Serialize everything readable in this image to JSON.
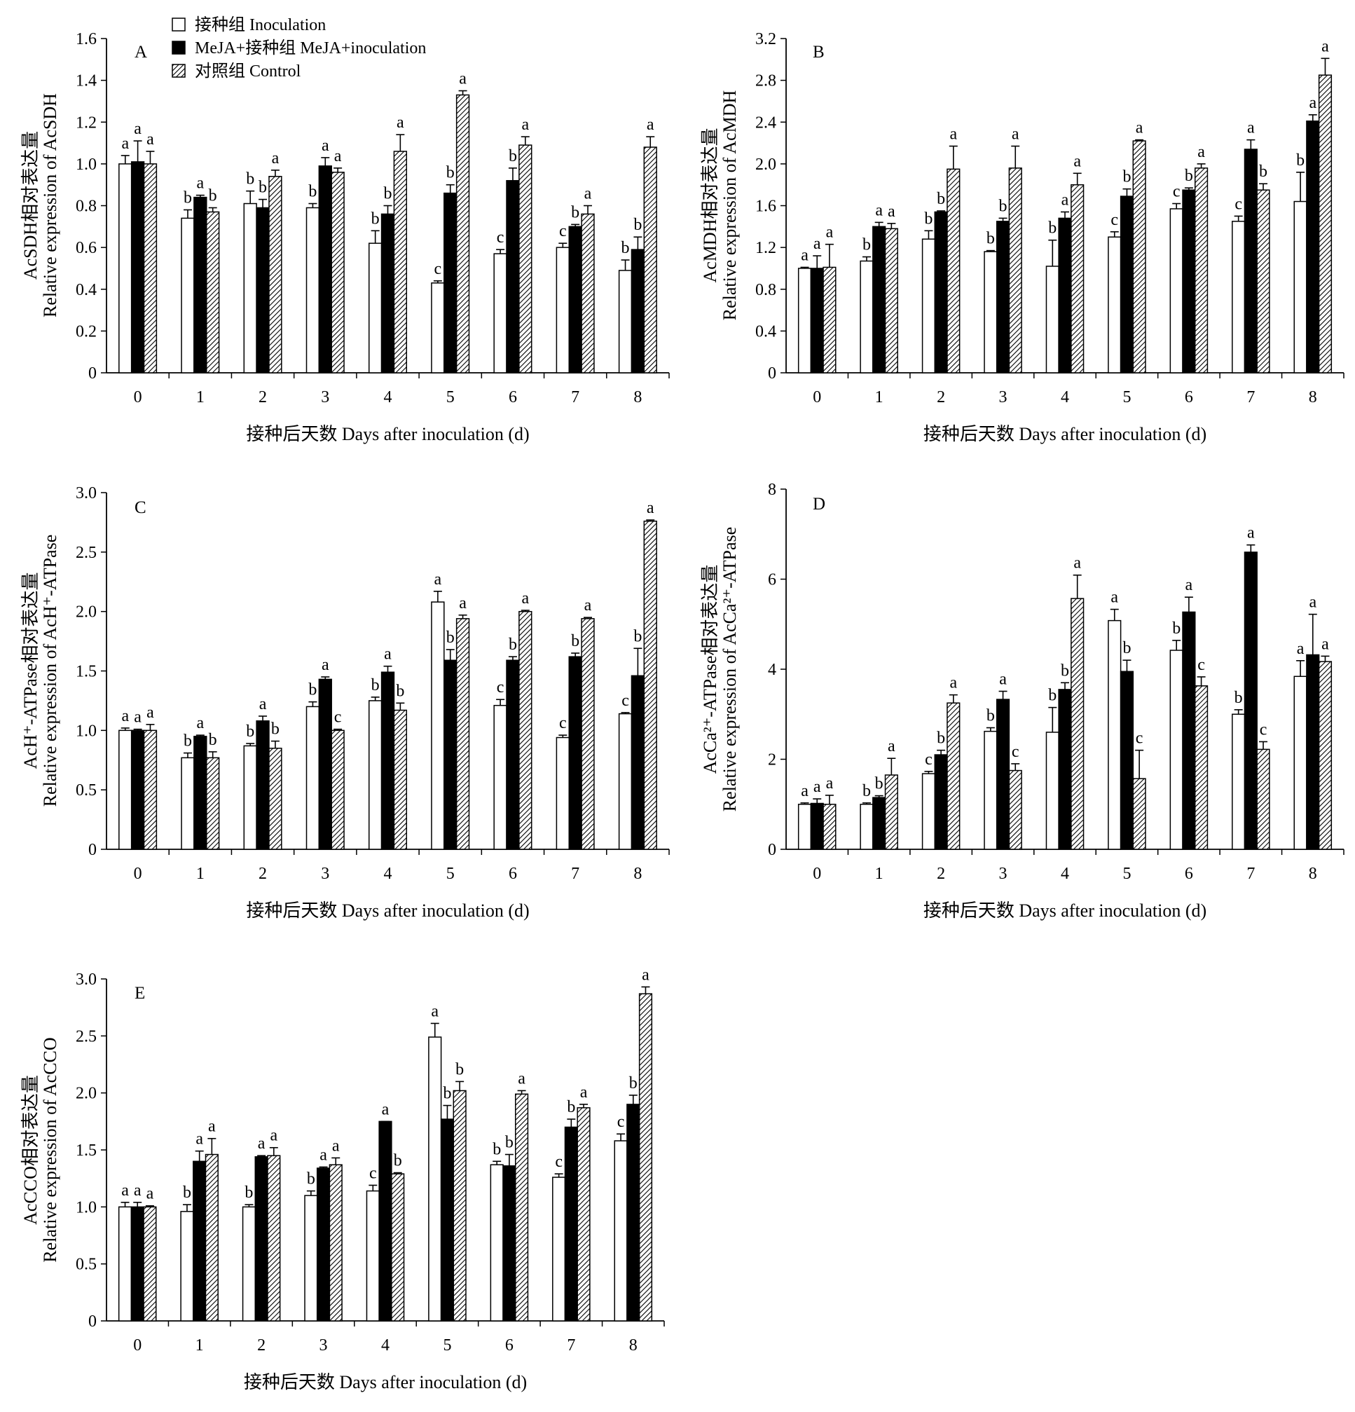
{
  "legend": [
    {
      "label": "接种组 Inoculation",
      "fill": "#ffffff"
    },
    {
      "label": "MeJA+接种组 MeJA+inoculation",
      "fill": "#000000"
    },
    {
      "label": "对照组 Control",
      "fill": "hatch"
    }
  ],
  "chart_data": [
    {
      "type": "bar",
      "panel": "A",
      "categories": [
        "0",
        "1",
        "2",
        "3",
        "4",
        "5",
        "6",
        "7",
        "8"
      ],
      "xlabel": "接种后天数 Days after inoculation (d)",
      "ylabel_line1": "AcSDH相对表达量",
      "ylabel_line2": "Relative expression of AcSDH",
      "ylim": [
        0,
        1.6
      ],
      "yticks": [
        "0",
        "0.2",
        "0.4",
        "0.6",
        "0.8",
        "1.0",
        "1.2",
        "1.4",
        "1.6"
      ],
      "series": [
        {
          "name": "接种组 Inoculation",
          "values": [
            1.0,
            0.74,
            0.81,
            0.79,
            0.62,
            0.43,
            0.57,
            0.6,
            0.49
          ],
          "errors": [
            0.04,
            0.04,
            0.06,
            0.02,
            0.06,
            0.01,
            0.02,
            0.02,
            0.05
          ],
          "letters": [
            "a",
            "b",
            "b",
            "b",
            "b",
            "c",
            "c",
            "c",
            "b"
          ]
        },
        {
          "name": "MeJA+接种组 MeJA+inoculation",
          "values": [
            1.01,
            0.84,
            0.79,
            0.99,
            0.76,
            0.86,
            0.92,
            0.7,
            0.59
          ],
          "errors": [
            0.1,
            0.01,
            0.04,
            0.04,
            0.04,
            0.04,
            0.06,
            0.01,
            0.06
          ],
          "letters": [
            "a",
            "a",
            "b",
            "a",
            "b",
            "b",
            "b",
            "b",
            "b"
          ]
        },
        {
          "name": "对照组 Control",
          "values": [
            1.0,
            0.77,
            0.94,
            0.96,
            1.06,
            1.33,
            1.09,
            0.76,
            1.08
          ],
          "errors": [
            0.06,
            0.02,
            0.03,
            0.02,
            0.08,
            0.02,
            0.04,
            0.04,
            0.05
          ],
          "letters": [
            "a",
            "b",
            "a",
            "a",
            "a",
            "a",
            "a",
            "a",
            "a"
          ]
        }
      ]
    },
    {
      "type": "bar",
      "panel": "B",
      "categories": [
        "0",
        "1",
        "2",
        "3",
        "4",
        "5",
        "6",
        "7",
        "8"
      ],
      "xlabel": "接种后天数 Days after inoculation (d)",
      "ylabel_line1": "AcMDH相对表达量",
      "ylabel_line2": "Relative expression of AcMDH",
      "ylim": [
        0,
        3.2
      ],
      "yticks": [
        "0",
        "0.4",
        "0.8",
        "1.2",
        "1.6",
        "2.0",
        "2.4",
        "2.8",
        "3.2"
      ],
      "series": [
        {
          "name": "接种组 Inoculation",
          "values": [
            1.0,
            1.07,
            1.28,
            1.16,
            1.02,
            1.3,
            1.57,
            1.45,
            1.64
          ],
          "errors": [
            0.01,
            0.04,
            0.08,
            0.01,
            0.25,
            0.05,
            0.05,
            0.05,
            0.28
          ],
          "letters": [
            "a",
            "b",
            "b",
            "b",
            "b",
            "c",
            "c",
            "c",
            "b"
          ]
        },
        {
          "name": "MeJA+接种组 MeJA+inoculation",
          "values": [
            1.0,
            1.4,
            1.54,
            1.45,
            1.48,
            1.69,
            1.75,
            2.14,
            2.41
          ],
          "errors": [
            0.12,
            0.04,
            0.01,
            0.03,
            0.06,
            0.07,
            0.02,
            0.09,
            0.06
          ],
          "letters": [
            "a",
            "a",
            "b",
            "b",
            "a",
            "b",
            "b",
            "a",
            "a"
          ]
        },
        {
          "name": "对照组 Control",
          "values": [
            1.01,
            1.38,
            1.95,
            1.96,
            1.8,
            2.22,
            1.96,
            1.75,
            2.85
          ],
          "errors": [
            0.22,
            0.05,
            0.22,
            0.21,
            0.11,
            0.01,
            0.04,
            0.06,
            0.16
          ],
          "letters": [
            "a",
            "a",
            "a",
            "a",
            "a",
            "a",
            "a",
            "b",
            "a"
          ]
        }
      ]
    },
    {
      "type": "bar",
      "panel": "C",
      "categories": [
        "0",
        "1",
        "2",
        "3",
        "4",
        "5",
        "6",
        "7",
        "8"
      ],
      "xlabel": "接种后天数 Days after inoculation (d)",
      "ylabel_line1": "AcH⁺-ATPase相对表达量",
      "ylabel_line2": "Relative expression of AcH⁺-ATPase",
      "ylim": [
        0,
        3.0
      ],
      "yticks": [
        "0",
        "0.5",
        "1.0",
        "1.5",
        "2.0",
        "2.5",
        "3.0"
      ],
      "series": [
        {
          "name": "接种组 Inoculation",
          "values": [
            1.0,
            0.77,
            0.87,
            1.2,
            1.25,
            2.08,
            1.21,
            0.94,
            1.14
          ],
          "errors": [
            0.02,
            0.04,
            0.02,
            0.04,
            0.03,
            0.09,
            0.05,
            0.02,
            0.01
          ],
          "letters": [
            "a",
            "b",
            "b",
            "b",
            "b",
            "a",
            "c",
            "c",
            "c"
          ]
        },
        {
          "name": "MeJA+接种组 MeJA+inoculation",
          "values": [
            1.0,
            0.95,
            1.08,
            1.43,
            1.49,
            1.59,
            1.59,
            1.62,
            1.46
          ],
          "errors": [
            0.01,
            0.01,
            0.04,
            0.02,
            0.05,
            0.09,
            0.03,
            0.03,
            0.23
          ],
          "letters": [
            "a",
            "a",
            "a",
            "a",
            "a",
            "b",
            "b",
            "b",
            "b"
          ]
        },
        {
          "name": "对照组 Control",
          "values": [
            1.0,
            0.77,
            0.85,
            1.0,
            1.17,
            1.94,
            2.0,
            1.94,
            2.76
          ],
          "errors": [
            0.05,
            0.05,
            0.06,
            0.01,
            0.06,
            0.03,
            0.01,
            0.01,
            0.01
          ],
          "letters": [
            "a",
            "b",
            "b",
            "c",
            "b",
            "a",
            "a",
            "a",
            "a"
          ]
        }
      ]
    },
    {
      "type": "bar",
      "panel": "D",
      "categories": [
        "0",
        "1",
        "2",
        "3",
        "4",
        "5",
        "6",
        "7",
        "8"
      ],
      "xlabel": "接种后天数 Days after inoculation (d)",
      "ylabel_line1": "AcCa²⁺-ATPase相对表达量",
      "ylabel_line2": "Relative expression of AcCa²⁺-ATPase",
      "ylim": [
        0,
        8
      ],
      "yticks": [
        "0",
        "2",
        "4",
        "6",
        "8"
      ],
      "series": [
        {
          "name": "接种组 Inoculation",
          "values": [
            1.0,
            1.0,
            1.68,
            2.62,
            2.6,
            5.08,
            4.42,
            3.0,
            3.84
          ],
          "errors": [
            0.03,
            0.03,
            0.05,
            0.08,
            0.55,
            0.25,
            0.22,
            0.1,
            0.35
          ],
          "letters": [
            "a",
            "b",
            "c",
            "b",
            "b",
            "a",
            "b",
            "b",
            "a"
          ]
        },
        {
          "name": "MeJA+接种组 MeJA+inoculation",
          "values": [
            1.02,
            1.15,
            2.1,
            3.33,
            3.55,
            3.95,
            5.27,
            6.6,
            4.32
          ],
          "errors": [
            0.1,
            0.04,
            0.1,
            0.18,
            0.15,
            0.25,
            0.33,
            0.16,
            0.9
          ],
          "letters": [
            "a",
            "b",
            "b",
            "a",
            "b",
            "b",
            "a",
            "a",
            "a"
          ]
        },
        {
          "name": "对照组 Control",
          "values": [
            1.0,
            1.65,
            3.25,
            1.75,
            5.57,
            1.57,
            3.63,
            2.22,
            4.17
          ],
          "errors": [
            0.2,
            0.37,
            0.18,
            0.15,
            0.52,
            0.63,
            0.2,
            0.17,
            0.12
          ],
          "letters": [
            "a",
            "a",
            "a",
            "c",
            "a",
            "c",
            "c",
            "c",
            "a"
          ]
        }
      ]
    },
    {
      "type": "bar",
      "panel": "E",
      "categories": [
        "0",
        "1",
        "2",
        "3",
        "4",
        "5",
        "6",
        "7",
        "8"
      ],
      "xlabel": "接种后天数 Days after inoculation (d)",
      "ylabel_line1": "AcCCO相对表达量",
      "ylabel_line2": "Relative expression of AcCCO",
      "ylim": [
        0,
        3.0
      ],
      "yticks": [
        "0",
        "0.5",
        "1.0",
        "1.5",
        "2.0",
        "2.5",
        "3.0"
      ],
      "series": [
        {
          "name": "接种组 Inoculation",
          "values": [
            1.0,
            0.96,
            1.0,
            1.1,
            1.14,
            2.49,
            1.37,
            1.26,
            1.58
          ],
          "errors": [
            0.04,
            0.06,
            0.02,
            0.04,
            0.05,
            0.12,
            0.03,
            0.03,
            0.06
          ],
          "letters": [
            "a",
            "b",
            "b",
            "b",
            "c",
            "a",
            "b",
            "c",
            "c"
          ]
        },
        {
          "name": "MeJA+接种组 MeJA+inoculation",
          "values": [
            1.0,
            1.4,
            1.44,
            1.34,
            1.75,
            1.77,
            1.36,
            1.7,
            1.9
          ],
          "errors": [
            0.04,
            0.09,
            0.01,
            0.01,
            0.0,
            0.12,
            0.1,
            0.07,
            0.08
          ],
          "letters": [
            "a",
            "a",
            "a",
            "a",
            "a",
            "b",
            "b",
            "b",
            "b"
          ]
        },
        {
          "name": "对照组 Control",
          "values": [
            1.0,
            1.46,
            1.45,
            1.37,
            1.29,
            2.02,
            1.99,
            1.87,
            2.87
          ],
          "errors": [
            0.01,
            0.14,
            0.07,
            0.06,
            0.01,
            0.08,
            0.03,
            0.03,
            0.06
          ],
          "letters": [
            "a",
            "a",
            "a",
            "a",
            "b",
            "b",
            "a",
            "a",
            "a"
          ]
        }
      ]
    }
  ]
}
